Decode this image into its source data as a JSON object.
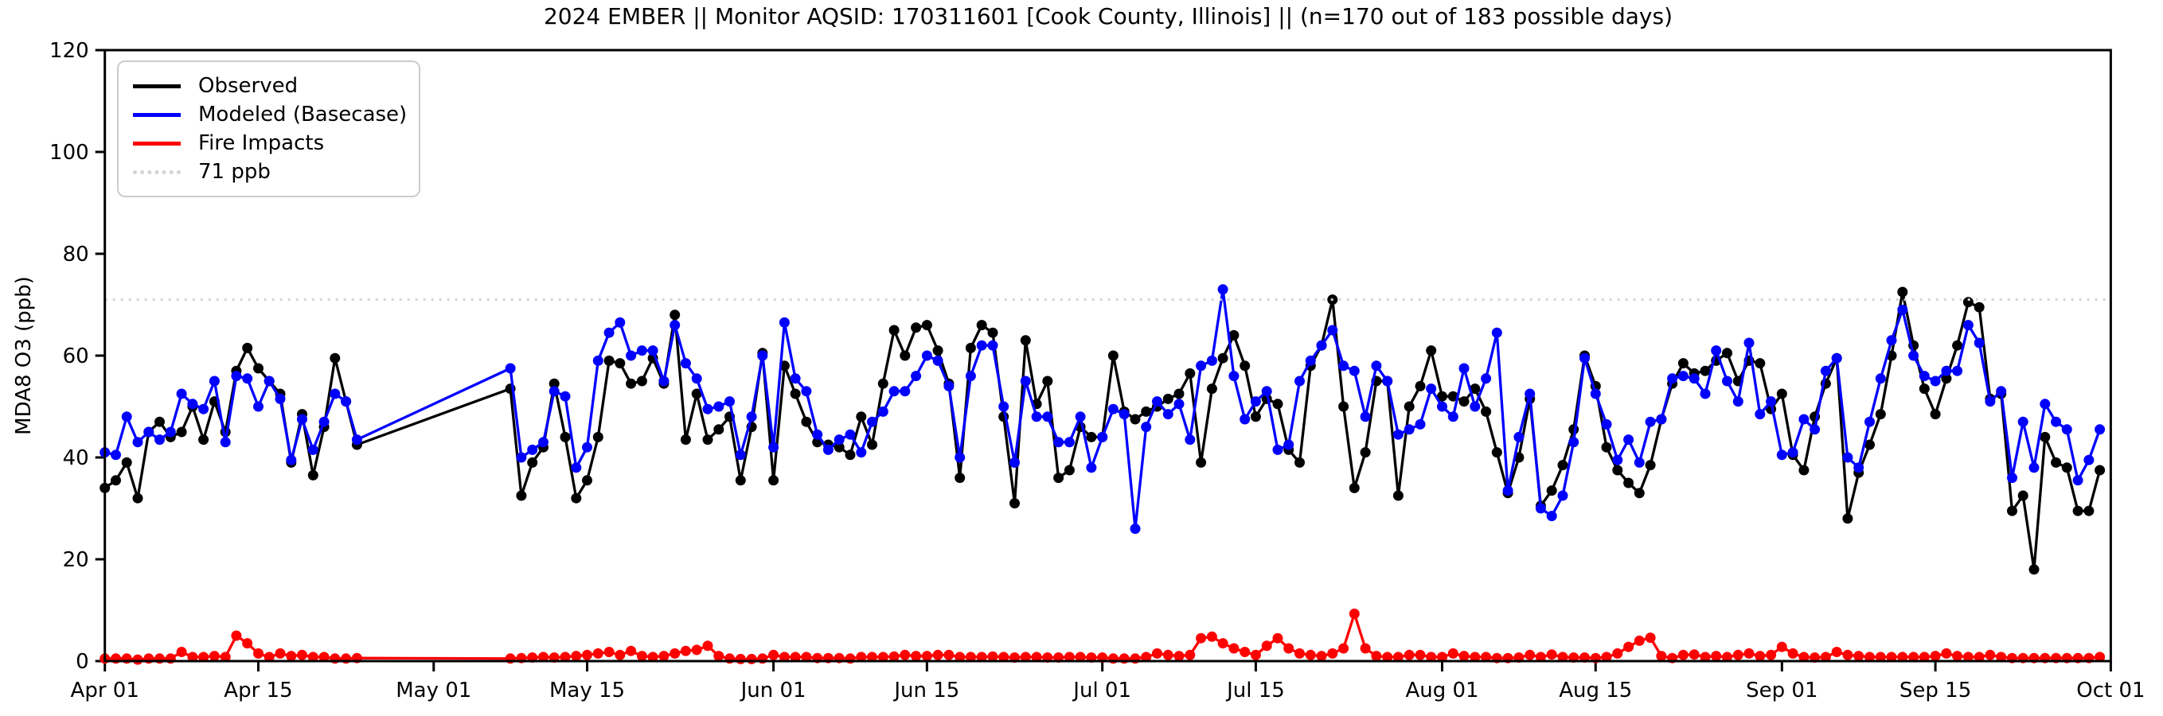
{
  "title": "2024 EMBER || Monitor AQSID: 170311601 [Cook County, Illinois] || (n=170 out of 183 possible days)",
  "axes": {
    "y_label": "MDA8 O3 (ppb)",
    "y_ticks": [
      0,
      20,
      40,
      60,
      80,
      100,
      120
    ],
    "x_ticks": [
      {
        "label": "Apr 01",
        "day": 0
      },
      {
        "label": "Apr 15",
        "day": 14
      },
      {
        "label": "May 01",
        "day": 30
      },
      {
        "label": "May 15",
        "day": 44
      },
      {
        "label": "Jun 01",
        "day": 61
      },
      {
        "label": "Jun 15",
        "day": 75
      },
      {
        "label": "Jul 01",
        "day": 91
      },
      {
        "label": "Jul 15",
        "day": 105
      },
      {
        "label": "Aug 01",
        "day": 122
      },
      {
        "label": "Aug 15",
        "day": 136
      },
      {
        "label": "Sep 01",
        "day": 153
      },
      {
        "label": "Sep 15",
        "day": 167
      },
      {
        "label": "Oct 01",
        "day": 183
      }
    ]
  },
  "threshold": {
    "value": 71,
    "label": "71 ppb",
    "color": "#d3d3d3"
  },
  "legend": {
    "items": [
      {
        "label": "Observed",
        "color": "#000000",
        "style": "solid"
      },
      {
        "label": "Modeled (Basecase)",
        "color": "#0000ff",
        "style": "solid"
      },
      {
        "label": "Fire Impacts",
        "color": "#ff0000",
        "style": "solid"
      },
      {
        "label": "71 ppb",
        "color": "#d3d3d3",
        "style": "dotted"
      }
    ]
  },
  "colors": {
    "observed": "#000000",
    "modeled": "#0000ff",
    "fire": "#ff0000",
    "threshold": "#d3d3d3",
    "axis": "#000000",
    "legend_border": "#cccccc"
  },
  "chart_data": {
    "type": "line",
    "title": "2024 EMBER || Monitor AQSID: 170311601 [Cook County, Illinois] || (n=170 out of 183 possible days)",
    "xlabel": "",
    "ylabel": "MDA8 O3 (ppb)",
    "ylim": [
      0,
      120
    ],
    "xlim_labels": [
      "Apr 01",
      "Oct 01"
    ],
    "grid": false,
    "legend_position": "upper left",
    "threshold_line": {
      "value": 71,
      "label": "71 ppb",
      "style": "dotted",
      "color": "#d3d3d3"
    },
    "note": "Daily values Apr 01 - Sep 30; null = missing day (Apr 25 - May 07); lines connect consecutive available days",
    "dates": [
      "Apr 01",
      "Apr 02",
      "Apr 03",
      "Apr 04",
      "Apr 05",
      "Apr 06",
      "Apr 07",
      "Apr 08",
      "Apr 09",
      "Apr 10",
      "Apr 11",
      "Apr 12",
      "Apr 13",
      "Apr 14",
      "Apr 15",
      "Apr 16",
      "Apr 17",
      "Apr 18",
      "Apr 19",
      "Apr 20",
      "Apr 21",
      "Apr 22",
      "Apr 23",
      "Apr 24",
      "Apr 25",
      "Apr 26",
      "Apr 27",
      "Apr 28",
      "Apr 29",
      "Apr 30",
      "May 01",
      "May 02",
      "May 03",
      "May 04",
      "May 05",
      "May 06",
      "May 07",
      "May 08",
      "May 09",
      "May 10",
      "May 11",
      "May 12",
      "May 13",
      "May 14",
      "May 15",
      "May 16",
      "May 17",
      "May 18",
      "May 19",
      "May 20",
      "May 21",
      "May 22",
      "May 23",
      "May 24",
      "May 25",
      "May 26",
      "May 27",
      "May 28",
      "May 29",
      "May 30",
      "May 31",
      "Jun 01",
      "Jun 02",
      "Jun 03",
      "Jun 04",
      "Jun 05",
      "Jun 06",
      "Jun 07",
      "Jun 08",
      "Jun 09",
      "Jun 10",
      "Jun 11",
      "Jun 12",
      "Jun 13",
      "Jun 14",
      "Jun 15",
      "Jun 16",
      "Jun 17",
      "Jun 18",
      "Jun 19",
      "Jun 20",
      "Jun 21",
      "Jun 22",
      "Jun 23",
      "Jun 24",
      "Jun 25",
      "Jun 26",
      "Jun 27",
      "Jun 28",
      "Jun 29",
      "Jun 30",
      "Jul 01",
      "Jul 02",
      "Jul 03",
      "Jul 04",
      "Jul 05",
      "Jul 06",
      "Jul 07",
      "Jul 08",
      "Jul 09",
      "Jul 10",
      "Jul 11",
      "Jul 12",
      "Jul 13",
      "Jul 14",
      "Jul 15",
      "Jul 16",
      "Jul 17",
      "Jul 18",
      "Jul 19",
      "Jul 20",
      "Jul 21",
      "Jul 22",
      "Jul 23",
      "Jul 24",
      "Jul 25",
      "Jul 26",
      "Jul 27",
      "Jul 28",
      "Jul 29",
      "Jul 30",
      "Jul 31",
      "Aug 01",
      "Aug 02",
      "Aug 03",
      "Aug 04",
      "Aug 05",
      "Aug 06",
      "Aug 07",
      "Aug 08",
      "Aug 09",
      "Aug 10",
      "Aug 11",
      "Aug 12",
      "Aug 13",
      "Aug 14",
      "Aug 15",
      "Aug 16",
      "Aug 17",
      "Aug 18",
      "Aug 19",
      "Aug 20",
      "Aug 21",
      "Aug 22",
      "Aug 23",
      "Aug 24",
      "Aug 25",
      "Aug 26",
      "Aug 27",
      "Aug 28",
      "Aug 29",
      "Aug 30",
      "Aug 31",
      "Sep 01",
      "Sep 02",
      "Sep 03",
      "Sep 04",
      "Sep 05",
      "Sep 06",
      "Sep 07",
      "Sep 08",
      "Sep 09",
      "Sep 10",
      "Sep 11",
      "Sep 12",
      "Sep 13",
      "Sep 14",
      "Sep 15",
      "Sep 16",
      "Sep 17",
      "Sep 18",
      "Sep 19",
      "Sep 20",
      "Sep 21",
      "Sep 22",
      "Sep 23",
      "Sep 24",
      "Sep 25",
      "Sep 26",
      "Sep 27",
      "Sep 28",
      "Sep 29",
      "Sep 30"
    ],
    "series": [
      {
        "name": "Observed",
        "color": "#000000",
        "values": [
          34,
          35.5,
          39,
          32,
          45,
          47,
          44,
          45,
          50,
          43.5,
          51,
          45,
          57,
          61.5,
          57.5,
          55,
          52.5,
          39,
          48.5,
          36.5,
          46,
          59.5,
          51,
          42.5,
          null,
          null,
          null,
          null,
          null,
          null,
          null,
          null,
          null,
          null,
          null,
          null,
          null,
          53.5,
          32.5,
          39,
          42,
          54.5,
          44,
          32,
          35.5,
          44,
          59,
          58.5,
          54.5,
          55,
          59.5,
          54.5,
          68,
          43.5,
          52.5,
          43.5,
          45.5,
          48,
          35.5,
          46,
          60.5,
          35.5,
          58,
          52.5,
          47,
          43,
          42.5,
          42,
          40.5,
          48,
          42.5,
          54.5,
          65,
          60,
          65.5,
          66,
          61,
          54.5,
          36,
          61.5,
          66,
          64.5,
          48,
          31,
          63,
          50.5,
          55,
          36,
          37.5,
          46,
          44,
          44,
          60,
          49,
          47.5,
          49,
          50,
          51.5,
          52.5,
          56.5,
          39,
          53.5,
          59.5,
          64,
          58,
          48,
          51.5,
          50.5,
          41.5,
          39,
          58,
          62,
          71,
          50,
          34,
          41,
          55,
          55,
          32.5,
          50,
          54,
          61,
          52,
          52,
          51,
          53.5,
          49,
          41,
          33,
          40,
          51.5,
          30.5,
          33.5,
          38.5,
          45.5,
          60,
          54,
          42,
          37.5,
          35,
          33,
          38.5,
          47.5,
          54.5,
          58.5,
          56.5,
          57,
          59,
          60.5,
          55,
          59,
          58.5,
          49.5,
          52.5,
          40.5,
          37.5,
          48,
          54.5,
          59.5,
          28,
          37,
          42.5,
          48.5,
          60,
          72.5,
          62,
          53.5,
          48.5,
          55.5,
          62,
          70.5,
          69.5,
          51.5,
          52.5,
          29.5,
          32.5,
          18,
          44,
          39,
          38,
          29.5,
          29.5,
          37.5
        ]
      },
      {
        "name": "Modeled (Basecase)",
        "color": "#0000ff",
        "values": [
          41,
          40.5,
          48,
          43,
          45,
          43.5,
          45,
          52.5,
          50.5,
          49.5,
          55,
          43,
          56,
          55.5,
          50,
          55,
          51.5,
          39.5,
          47.5,
          41.5,
          47,
          52.5,
          51,
          43.5,
          null,
          null,
          null,
          null,
          null,
          null,
          null,
          null,
          null,
          null,
          null,
          null,
          null,
          57.5,
          40,
          41.5,
          43,
          53,
          52,
          38,
          42,
          59,
          64.5,
          66.5,
          60,
          61,
          61,
          55,
          66,
          58.5,
          55.5,
          49.5,
          50,
          51,
          40.5,
          48,
          60,
          42,
          66.5,
          55.5,
          53,
          44.5,
          41.5,
          43.5,
          44.5,
          41,
          47,
          49,
          53,
          53,
          56,
          60,
          59,
          54,
          40,
          56,
          62,
          62,
          50,
          39,
          55,
          48,
          48,
          43,
          43,
          48,
          38,
          44,
          49.5,
          48.5,
          26,
          46,
          51,
          48.5,
          50.5,
          43.5,
          58,
          59,
          73,
          56,
          47.5,
          51,
          53,
          41.5,
          42.5,
          55,
          59,
          62,
          65,
          58,
          57,
          48,
          58,
          55,
          44.5,
          45.5,
          46.5,
          53.5,
          50,
          48,
          57.5,
          50,
          55.5,
          64.5,
          33.5,
          44,
          52.5,
          30,
          28.5,
          32.5,
          43,
          59.5,
          52.5,
          46.5,
          39.5,
          43.5,
          39,
          47,
          47.5,
          55.5,
          56,
          55.5,
          52.5,
          61,
          55,
          51,
          62.5,
          48.5,
          51,
          40.5,
          41,
          47.5,
          45.5,
          57,
          59.5,
          40,
          38,
          47,
          55.5,
          63,
          69,
          60,
          56,
          55,
          57,
          57,
          66,
          62.5,
          51,
          53,
          36,
          47,
          38,
          50.5,
          47,
          45.5,
          35.5,
          39.5,
          45.5
        ]
      },
      {
        "name": "Fire Impacts",
        "color": "#ff0000",
        "values": [
          0.5,
          0.5,
          0.5,
          0.3,
          0.5,
          0.5,
          0.5,
          1.8,
          0.8,
          0.8,
          1,
          0.8,
          5,
          3.5,
          1.5,
          0.8,
          1.5,
          1,
          1.2,
          0.8,
          0.8,
          0.5,
          0.5,
          0.6,
          null,
          null,
          null,
          null,
          null,
          null,
          null,
          null,
          null,
          null,
          null,
          null,
          null,
          0.5,
          0.6,
          0.7,
          0.8,
          0.7,
          0.8,
          1,
          1.2,
          1.5,
          1.8,
          1.2,
          2,
          1,
          0.8,
          1,
          1.5,
          2,
          2.2,
          3,
          1,
          0.5,
          0.4,
          0.4,
          0.5,
          1.2,
          0.8,
          0.8,
          0.8,
          0.6,
          0.6,
          0.6,
          0.5,
          0.8,
          0.8,
          0.8,
          0.9,
          1.2,
          1,
          1,
          1.2,
          1.2,
          0.8,
          0.8,
          0.8,
          0.9,
          0.8,
          0.7,
          0.8,
          0.8,
          0.7,
          0.7,
          0.8,
          0.8,
          0.7,
          0.7,
          0.5,
          0.5,
          0.5,
          0.8,
          1.5,
          1.2,
          1,
          1.2,
          4.5,
          4.8,
          3.5,
          2.5,
          1.8,
          1.2,
          3,
          4.5,
          2.5,
          1.5,
          1.2,
          1,
          1.5,
          2.5,
          9.3,
          2.5,
          1,
          0.8,
          0.8,
          1.2,
          1.2,
          0.8,
          0.8,
          1.5,
          1,
          0.8,
          0.8,
          0.6,
          0.6,
          0.7,
          1.2,
          0.8,
          1.3,
          0.8,
          0.7,
          0.7,
          0.6,
          0.8,
          1.5,
          2.8,
          4,
          4.6,
          1,
          0.6,
          1.2,
          1.3,
          0.8,
          1,
          0.8,
          1.2,
          1.5,
          1,
          1.2,
          2.8,
          1.5,
          0.8,
          0.7,
          0.8,
          1.8,
          1.2,
          1,
          0.8,
          0.8,
          0.8,
          0.8,
          0.8,
          0.8,
          1,
          1.5,
          1,
          0.8,
          0.8,
          1.2,
          0.8,
          0.6,
          0.6,
          0.6,
          0.6,
          0.6,
          0.6,
          0.6,
          0.6,
          0.8
        ]
      }
    ]
  }
}
